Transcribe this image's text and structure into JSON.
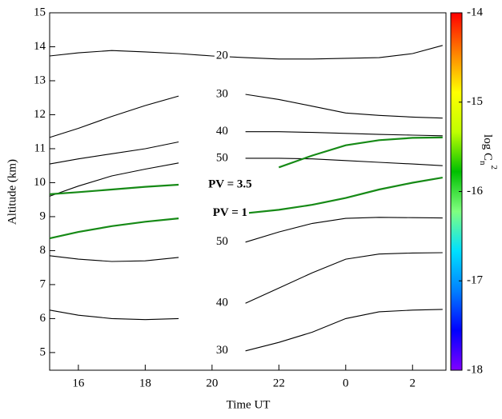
{
  "chart_data": {
    "type": "contour",
    "xlabel": "Time UT",
    "ylabel": "Altitude (km)",
    "colorbar_label": {
      "text": "log C",
      "sub": "n",
      "sup": "2"
    },
    "xlim": [
      15.14,
      27.0
    ],
    "xticks": [
      16,
      18,
      20,
      22,
      {
        "value": 24,
        "label": "0"
      },
      {
        "value": 26,
        "label": "2"
      }
    ],
    "ylim": [
      4.48,
      15
    ],
    "yticks": [
      5,
      6,
      7,
      8,
      9,
      10,
      11,
      12,
      13,
      14,
      15
    ],
    "clim": [
      -18,
      -14
    ],
    "cticks": [
      -14,
      -15,
      -16,
      -17,
      -18
    ],
    "colormap": [
      "#8000ff",
      "#0000ff",
      "#0080ff",
      "#00e0ff",
      "#80ff80",
      "#00c000",
      "#c0ff00",
      "#ffff00",
      "#ff8000",
      "#ff0000"
    ],
    "x": [
      15.14,
      16,
      17,
      18,
      19,
      20,
      21,
      22,
      23,
      24,
      25,
      26,
      26.9
    ],
    "series": [
      {
        "name": "20",
        "color": "#000000",
        "values": [
          13.73,
          13.82,
          13.89,
          13.85,
          13.8,
          13.73,
          13.68,
          13.64,
          13.64,
          13.66,
          13.68,
          13.8,
          14.04
        ]
      },
      {
        "name": "30",
        "color": "#000000",
        "values": [
          11.33,
          11.6,
          11.95,
          12.27,
          12.55,
          null,
          12.6,
          12.45,
          12.25,
          12.05,
          11.98,
          11.93,
          11.9
        ]
      },
      {
        "name": "40",
        "color": "#000000",
        "values": [
          10.55,
          10.7,
          10.85,
          11.0,
          11.2,
          null,
          11.5,
          11.5,
          11.48,
          11.45,
          11.42,
          11.4,
          11.38
        ]
      },
      {
        "name": "50",
        "color": "#000000",
        "values": [
          9.6,
          9.9,
          10.2,
          10.4,
          10.58,
          null,
          10.72,
          10.72,
          10.7,
          10.65,
          10.6,
          10.55,
          10.5
        ]
      },
      {
        "name": "PV = 3.5",
        "color": "#168a16",
        "values": [
          9.66,
          9.72,
          9.8,
          9.88,
          9.94,
          null,
          null,
          10.45,
          10.8,
          11.1,
          11.25,
          11.32,
          11.33
        ]
      },
      {
        "name": "PV = 1",
        "color": "#168a16",
        "values": [
          8.36,
          8.55,
          8.72,
          8.85,
          8.95,
          null,
          9.1,
          9.2,
          9.35,
          9.55,
          9.8,
          10.0,
          10.15
        ]
      },
      {
        "name": "50",
        "color": "#000000",
        "values": [
          7.85,
          7.75,
          7.68,
          7.7,
          7.8,
          null,
          8.25,
          8.55,
          8.8,
          8.95,
          8.98,
          8.97,
          8.96
        ]
      },
      {
        "name": "40",
        "color": "#000000",
        "values": [
          6.25,
          6.1,
          6.0,
          5.97,
          6.0,
          null,
          6.45,
          6.9,
          7.35,
          7.75,
          7.9,
          7.93,
          7.94
        ]
      },
      {
        "name": "30",
        "color": "#000000",
        "values": [
          null,
          null,
          null,
          null,
          null,
          null,
          5.05,
          5.3,
          5.6,
          6.0,
          6.2,
          6.25,
          6.27
        ]
      }
    ]
  }
}
